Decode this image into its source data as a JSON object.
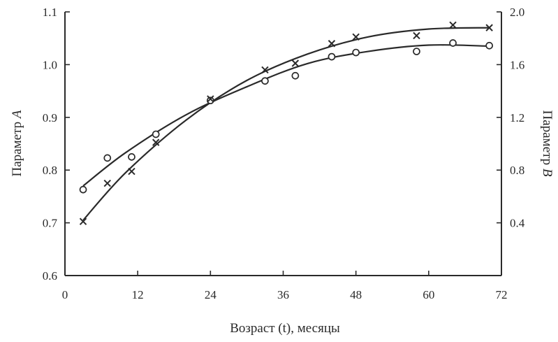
{
  "chart_data": {
    "type": "scatter",
    "title": "",
    "xlabel": "Возраст (t), месяцы",
    "ylabel_left": {
      "text": "Параметр ",
      "var": "A"
    },
    "ylabel_right": {
      "text": "Параметр ",
      "var": "B"
    },
    "xlim": [
      0,
      72
    ],
    "ylim_left": [
      0.6,
      1.1
    ],
    "ylim_right": [
      0.0,
      2.0
    ],
    "x_ticks": [
      "0",
      "12",
      "24",
      "36",
      "48",
      "60",
      "72"
    ],
    "y_left_ticks": [
      "0.6",
      "0.7",
      "0.8",
      "0.9",
      "1.0",
      "1.1"
    ],
    "y_right_ticks": [
      "0.4",
      "0.8",
      "1.2",
      "1.6",
      "2.0"
    ],
    "grid": false,
    "legend": "none",
    "series": [
      {
        "marker": "circle",
        "axis": "left",
        "x": [
          3,
          7,
          11,
          15,
          24,
          33,
          38,
          44,
          48,
          58,
          64,
          70
        ],
        "y": [
          0.763,
          0.823,
          0.825,
          0.868,
          0.932,
          0.969,
          0.979,
          1.015,
          1.023,
          1.025,
          1.041,
          1.036
        ],
        "fit_curve": {
          "x": [
            3,
            10,
            20,
            30,
            40,
            50,
            60,
            70
          ],
          "y": [
            0.77,
            0.833,
            0.905,
            0.958,
            1.002,
            1.025,
            1.037,
            1.035
          ]
        }
      },
      {
        "marker": "x",
        "axis": "right",
        "x": [
          3,
          7,
          11,
          15,
          24,
          33,
          38,
          44,
          48,
          58,
          64,
          70
        ],
        "y": [
          0.41,
          0.7,
          0.79,
          1.01,
          1.34,
          1.56,
          1.61,
          1.76,
          1.81,
          1.82,
          1.9,
          1.88
        ],
        "fit_curve": {
          "x": [
            3,
            10,
            20,
            30,
            40,
            50,
            60,
            70
          ],
          "y": [
            0.42,
            0.78,
            1.18,
            1.48,
            1.68,
            1.81,
            1.87,
            1.88
          ]
        }
      }
    ]
  }
}
